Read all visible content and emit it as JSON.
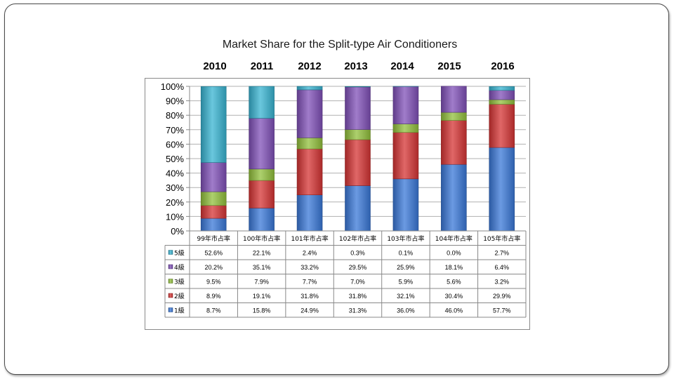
{
  "chart_data": {
    "type": "bar",
    "stacked": true,
    "title": "Market Share for the Split-type Air Conditioners",
    "years": [
      "2010",
      "2011",
      "2012",
      "2013",
      "2014",
      "2015",
      "2016"
    ],
    "categories": [
      "99年市占率",
      "100年市占率",
      "101年市占率",
      "102年市占率",
      "103年市占率",
      "104年市占率",
      "105年市占率"
    ],
    "y_ticks": [
      "0%",
      "10%",
      "20%",
      "30%",
      "40%",
      "50%",
      "60%",
      "70%",
      "80%",
      "90%",
      "100%"
    ],
    "ylim": [
      0,
      100
    ],
    "series": [
      {
        "name": "1級",
        "color": "#3a78d8",
        "values": [
          8.7,
          15.8,
          24.9,
          31.3,
          36.0,
          46.0,
          57.7
        ],
        "labels": [
          "8.7%",
          "15.8%",
          "24.9%",
          "31.3%",
          "36.0%",
          "46.0%",
          "57.7%"
        ]
      },
      {
        "name": "2級",
        "color": "#d63434",
        "values": [
          8.9,
          19.1,
          31.8,
          31.8,
          32.1,
          30.4,
          29.9
        ],
        "labels": [
          "8.9%",
          "19.1%",
          "31.8%",
          "31.8%",
          "32.1%",
          "30.4%",
          "29.9%"
        ]
      },
      {
        "name": "3級",
        "color": "#92c03c",
        "values": [
          9.5,
          7.9,
          7.7,
          7.0,
          5.9,
          5.6,
          3.2
        ],
        "labels": [
          "9.5%",
          "7.9%",
          "7.7%",
          "7.0%",
          "5.9%",
          "5.6%",
          "3.2%"
        ]
      },
      {
        "name": "4級",
        "color": "#8050b8",
        "values": [
          20.2,
          35.1,
          33.2,
          29.5,
          25.9,
          18.1,
          6.4
        ],
        "labels": [
          "20.2%",
          "35.1%",
          "33.2%",
          "29.5%",
          "25.9%",
          "18.1%",
          "6.4%"
        ]
      },
      {
        "name": "5級",
        "color": "#38b4d2",
        "values": [
          52.6,
          22.1,
          2.4,
          0.3,
          0.1,
          0.0,
          2.7
        ],
        "labels": [
          "52.6%",
          "22.1%",
          "2.4%",
          "0.3%",
          "0.1%",
          "0.0%",
          "2.7%"
        ]
      }
    ],
    "table_row_order": [
      "5級",
      "4級",
      "3級",
      "2級",
      "1級"
    ]
  }
}
